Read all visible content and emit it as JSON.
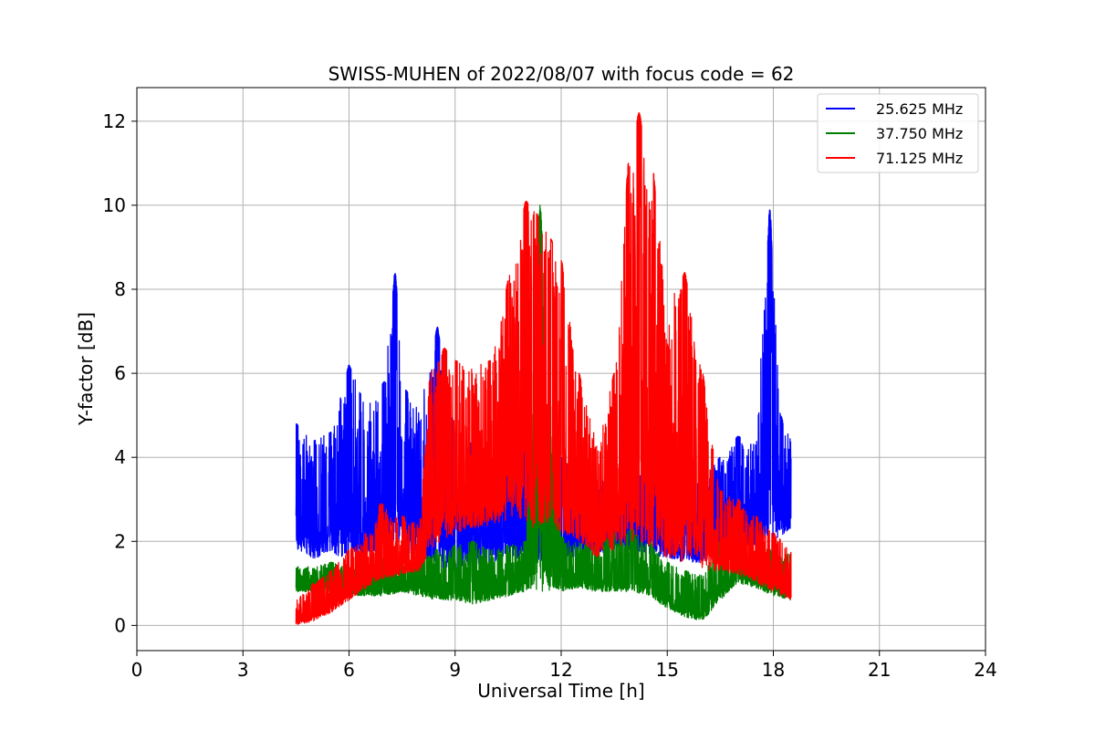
{
  "chart_data": {
    "type": "line",
    "title": "SWISS-MUHEN of 2022/08/07 with focus code = 62",
    "xlabel": "Universal Time [h]",
    "ylabel": "Y-factor [dB]",
    "xlim": [
      0,
      24
    ],
    "ylim": [
      -0.6,
      12.8
    ],
    "xticks": [
      0,
      3,
      6,
      9,
      12,
      15,
      18,
      21,
      24
    ],
    "yticks": [
      0,
      2,
      4,
      6,
      8,
      10,
      12
    ],
    "grid": true,
    "legend_position": "top-right",
    "series": [
      {
        "name": "25.625 MHz",
        "color": "#0000ff",
        "x": [
          4.5,
          5.0,
          5.5,
          6.0,
          6.5,
          7.0,
          7.3,
          7.6,
          8.0,
          8.5,
          9.0,
          9.5,
          10.0,
          10.5,
          11.0,
          11.5,
          12.0,
          12.5,
          13.0,
          13.5,
          14.0,
          14.5,
          15.0,
          15.5,
          16.0,
          16.5,
          17.0,
          17.5,
          17.9,
          18.2,
          18.5
        ],
        "low": [
          1.8,
          1.6,
          1.7,
          1.6,
          1.7,
          1.8,
          1.9,
          1.8,
          1.5,
          1.4,
          1.3,
          1.4,
          1.5,
          1.6,
          1.6,
          1.5,
          1.5,
          1.6,
          1.7,
          1.8,
          1.8,
          1.7,
          1.6,
          1.5,
          1.5,
          1.6,
          1.8,
          1.9,
          2.0,
          2.1,
          2.3
        ],
        "high": [
          4.8,
          4.4,
          4.6,
          6.2,
          5.2,
          5.8,
          8.4,
          5.6,
          5.2,
          7.1,
          4.6,
          4.4,
          4.2,
          4.3,
          4.4,
          4.5,
          4.0,
          3.8,
          3.5,
          3.9,
          3.6,
          4.2,
          4.0,
          3.8,
          3.6,
          4.0,
          4.5,
          4.3,
          9.9,
          5.0,
          4.4
        ]
      },
      {
        "name": "37.750 MHz",
        "color": "#008000",
        "x": [
          4.5,
          5.0,
          5.5,
          6.0,
          6.5,
          7.0,
          7.5,
          8.0,
          8.5,
          9.0,
          9.5,
          10.0,
          10.5,
          11.0,
          11.4,
          12.0,
          12.5,
          13.0,
          13.5,
          14.0,
          14.5,
          15.0,
          15.5,
          16.0,
          16.5,
          17.0,
          17.5,
          18.0,
          18.5
        ],
        "low": [
          0.8,
          0.8,
          0.8,
          0.7,
          0.7,
          0.7,
          0.8,
          0.7,
          0.6,
          0.6,
          0.5,
          0.6,
          0.7,
          0.8,
          0.8,
          0.8,
          0.9,
          0.8,
          0.8,
          0.8,
          0.7,
          0.4,
          0.2,
          0.1,
          0.6,
          1.0,
          0.9,
          0.7,
          0.6
        ],
        "high": [
          1.4,
          1.4,
          1.5,
          1.4,
          1.5,
          1.6,
          1.5,
          1.7,
          1.8,
          1.9,
          2.0,
          1.8,
          1.9,
          2.0,
          10.0,
          2.1,
          2.0,
          2.0,
          2.2,
          2.3,
          2.0,
          1.5,
          1.3,
          1.2,
          2.0,
          2.2,
          2.0,
          1.8,
          1.8
        ]
      },
      {
        "name": "71.125 MHz",
        "color": "#ff0000",
        "x": [
          4.5,
          5.0,
          5.5,
          6.0,
          6.5,
          6.9,
          7.5,
          8.0,
          8.3,
          8.7,
          9.0,
          9.5,
          10.0,
          10.5,
          11.0,
          11.3,
          11.7,
          12.0,
          12.5,
          13.0,
          13.5,
          13.9,
          14.2,
          14.6,
          15.0,
          15.5,
          16.0,
          16.5,
          17.0,
          17.5,
          18.0,
          18.5
        ],
        "low": [
          0.0,
          0.1,
          0.3,
          0.6,
          0.9,
          1.1,
          1.2,
          1.3,
          1.8,
          2.0,
          2.2,
          2.3,
          2.4,
          2.5,
          2.4,
          2.3,
          2.3,
          2.2,
          2.0,
          1.6,
          1.8,
          2.0,
          2.0,
          1.8,
          1.6,
          1.5,
          1.3,
          1.3,
          1.2,
          1.0,
          0.8,
          0.6
        ],
        "high": [
          0.6,
          1.0,
          1.3,
          1.8,
          2.2,
          2.9,
          2.6,
          2.4,
          6.0,
          6.6,
          6.3,
          6.2,
          6.3,
          8.2,
          10.1,
          9.8,
          9.2,
          8.7,
          6.0,
          4.4,
          6.0,
          11.0,
          12.2,
          10.8,
          7.6,
          8.4,
          6.0,
          3.2,
          3.0,
          2.6,
          2.2,
          1.8
        ]
      }
    ]
  }
}
